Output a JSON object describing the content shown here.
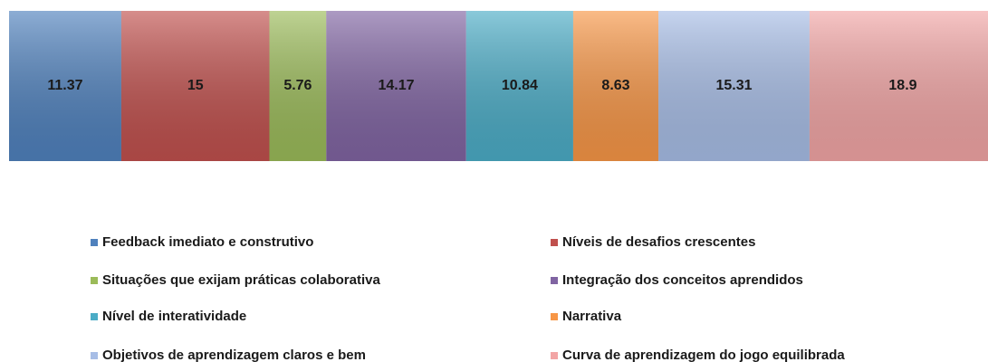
{
  "chart_data": {
    "type": "stacked-bar-horizontal",
    "series": [
      {
        "name": "Feedback imediato e construtivo",
        "color": "#4f81bd",
        "values": [
          11.37
        ]
      },
      {
        "name": "Níveis de desafios crescentes",
        "color": "#c0504d",
        "values": [
          15
        ]
      },
      {
        "name": "Situações que exijam práticas colaborativa",
        "color": "#9bbb59",
        "values": [
          5.76
        ]
      },
      {
        "name": "Integração dos conceitos aprendidos",
        "color": "#8064a2",
        "values": [
          14.17
        ]
      },
      {
        "name": "Nível de interatividade",
        "color": "#4bacc6",
        "values": [
          10.84
        ]
      },
      {
        "name": "Narrativa",
        "color": "#f79646",
        "values": [
          8.63
        ]
      },
      {
        "name": "Objetivos de aprendizagem claros e bem",
        "color": "#a7bde6",
        "values": [
          15.31
        ]
      },
      {
        "name": "Curva de aprendizagem do jogo equilibrada",
        "color": "#f2a5a5",
        "values": [
          18.9
        ]
      }
    ],
    "legend": "bottom"
  }
}
